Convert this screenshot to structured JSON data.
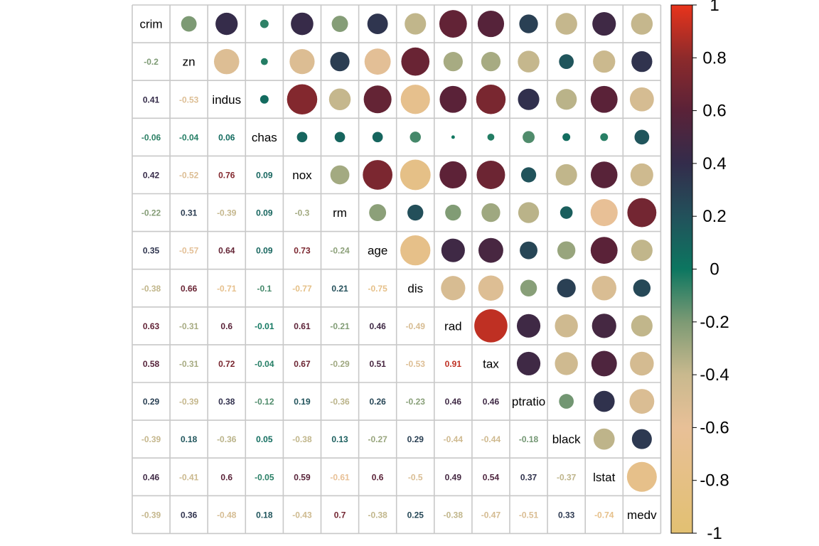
{
  "chart_data": {
    "type": "heatmap",
    "variables": [
      "crim",
      "zn",
      "indus",
      "chas",
      "nox",
      "rm",
      "age",
      "dis",
      "rad",
      "tax",
      "ptratio",
      "black",
      "lstat",
      "medv"
    ],
    "lower_triangle_labels": [
      [],
      [
        "-0.2"
      ],
      [
        "0.41",
        "-0.53"
      ],
      [
        "-0.06",
        "-0.04",
        "0.06"
      ],
      [
        "0.42",
        "-0.52",
        "0.76",
        "0.09"
      ],
      [
        "-0.22",
        "0.31",
        "-0.39",
        "0.09",
        "-0.3"
      ],
      [
        "0.35",
        "-0.57",
        "0.64",
        "0.09",
        "0.73",
        "-0.24"
      ],
      [
        "-0.38",
        "0.66",
        "-0.71",
        "-0.1",
        "-0.77",
        "0.21",
        "-0.75"
      ],
      [
        "0.63",
        "-0.31",
        "0.6",
        "-0.01",
        "0.61",
        "-0.21",
        "0.46",
        "-0.49"
      ],
      [
        "0.58",
        "-0.31",
        "0.72",
        "-0.04",
        "0.67",
        "-0.29",
        "0.51",
        "-0.53",
        "0.91"
      ],
      [
        "0.29",
        "-0.39",
        "0.38",
        "-0.12",
        "0.19",
        "-0.36",
        "0.26",
        "-0.23",
        "0.46",
        "0.46"
      ],
      [
        "-0.39",
        "0.18",
        "-0.36",
        "0.05",
        "-0.38",
        "0.13",
        "-0.27",
        "0.29",
        "-0.44",
        "-0.44",
        "-0.18"
      ],
      [
        "0.46",
        "-0.41",
        "0.6",
        "-0.05",
        "0.59",
        "-0.61",
        "0.6",
        "-0.5",
        "0.49",
        "0.54",
        "0.37",
        "-0.37"
      ],
      [
        "-0.39",
        "0.36",
        "-0.48",
        "0.18",
        "-0.43",
        "0.7",
        "-0.38",
        "0.25",
        "-0.38",
        "-0.47",
        "-0.51",
        "0.33",
        "-0.74"
      ]
    ],
    "colorbar": {
      "range": [
        -1,
        1
      ],
      "ticks": [
        "1",
        "0.8",
        "0.6",
        "0.4",
        "0.2",
        "0",
        "-0.2",
        "-0.4",
        "-0.6",
        "-0.8",
        "-1"
      ],
      "colors": [
        {
          "value": -1.0,
          "color": "#e2c072"
        },
        {
          "value": -0.6,
          "color": "#e8c097"
        },
        {
          "value": -0.4,
          "color": "#c9b98e"
        },
        {
          "value": -0.2,
          "color": "#7d9a74"
        },
        {
          "value": 0.0,
          "color": "#0c7660"
        },
        {
          "value": 0.2,
          "color": "#22515b"
        },
        {
          "value": 0.4,
          "color": "#332c4b"
        },
        {
          "value": 0.6,
          "color": "#5a2238"
        },
        {
          "value": 0.8,
          "color": "#8d2a2b"
        },
        {
          "value": 1.0,
          "color": "#e8341c"
        }
      ]
    }
  }
}
